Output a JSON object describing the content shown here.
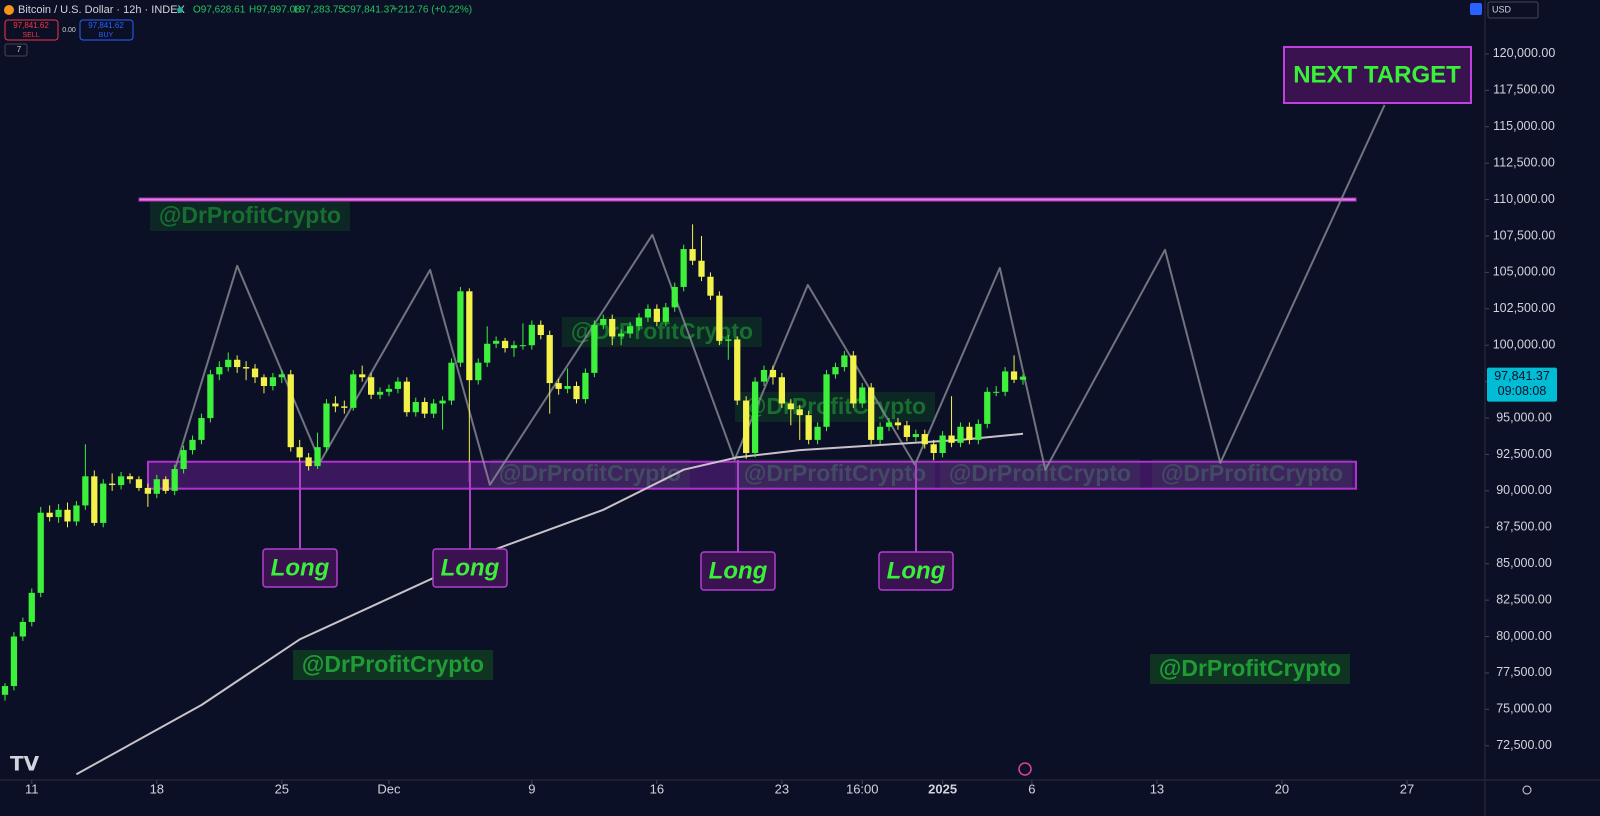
{
  "header": {
    "symbol": "Bitcoin / U.S. Dollar · 12h · INDEX",
    "ohlc": [
      "O97,628.61",
      "H97,997.08",
      "L97,283.75",
      "C97,841.37"
    ],
    "change": "+212.76 (+0.22%)",
    "sell_price": "97,841.62",
    "sell": "SELL",
    "spread": "0.00",
    "buy_price": "97,841.62",
    "buy": "BUY",
    "indicators": "7",
    "currency": "USD"
  },
  "chart_data": {
    "type": "candlestick",
    "up_color": "#3cf03c",
    "down_color": "#f2f24a",
    "ohlc": [
      [
        76000,
        76800,
        75600,
        76600
      ],
      [
        76600,
        80300,
        76300,
        80000
      ],
      [
        80000,
        81300,
        79700,
        81000
      ],
      [
        81000,
        83300,
        80700,
        83000
      ],
      [
        83000,
        88900,
        82700,
        88500
      ],
      [
        88500,
        89000,
        87900,
        88200
      ],
      [
        88200,
        89100,
        87800,
        88700
      ],
      [
        88700,
        89200,
        87500,
        87900
      ],
      [
        87900,
        89300,
        87600,
        89000
      ],
      [
        89000,
        93200,
        88700,
        91000
      ],
      [
        91000,
        91400,
        87600,
        87800
      ],
      [
        87800,
        90800,
        87500,
        90500
      ],
      [
        90500,
        91200,
        90000,
        90400
      ],
      [
        90400,
        91300,
        90100,
        91000
      ],
      [
        91000,
        91200,
        90500,
        90800
      ],
      [
        90800,
        91000,
        90000,
        90200
      ],
      [
        90200,
        90500,
        88900,
        89800
      ],
      [
        89800,
        91100,
        89500,
        90800
      ],
      [
        90800,
        91000,
        89800,
        90000
      ],
      [
        90000,
        91800,
        89700,
        91500
      ],
      [
        91500,
        93100,
        91200,
        92800
      ],
      [
        92800,
        93800,
        92500,
        93500
      ],
      [
        93500,
        95300,
        93200,
        95000
      ],
      [
        95000,
        98300,
        94700,
        98000
      ],
      [
        98000,
        98900,
        97600,
        98500
      ],
      [
        98500,
        99500,
        98200,
        99000
      ],
      [
        99000,
        99300,
        98100,
        98500
      ],
      [
        98500,
        98900,
        97600,
        98400
      ],
      [
        98400,
        98700,
        97400,
        97800
      ],
      [
        97800,
        98000,
        96700,
        97200
      ],
      [
        97200,
        98100,
        96900,
        97800
      ],
      [
        97800,
        98300,
        97400,
        98000
      ],
      [
        98000,
        98300,
        92700,
        93000
      ],
      [
        93000,
        93500,
        92000,
        92300
      ],
      [
        92300,
        92600,
        91400,
        91700
      ],
      [
        91700,
        94000,
        91500,
        93000
      ],
      [
        93000,
        96300,
        92700,
        96000
      ],
      [
        96000,
        96500,
        95400,
        95800
      ],
      [
        95800,
        96200,
        95300,
        95700
      ],
      [
        95700,
        98300,
        95500,
        98000
      ],
      [
        98000,
        98600,
        97500,
        97800
      ],
      [
        97800,
        98100,
        96300,
        96600
      ],
      [
        96600,
        97100,
        96300,
        96800
      ],
      [
        96800,
        97300,
        96500,
        97000
      ],
      [
        97000,
        97800,
        96700,
        97500
      ],
      [
        97500,
        97800,
        95100,
        95400
      ],
      [
        95400,
        96400,
        95100,
        96100
      ],
      [
        96100,
        96400,
        95000,
        95300
      ],
      [
        95300,
        96300,
        95000,
        96000
      ],
      [
        96000,
        96500,
        94200,
        96200
      ],
      [
        96200,
        99100,
        95900,
        98800
      ],
      [
        98800,
        104000,
        98500,
        103700
      ],
      [
        103700,
        103900,
        90600,
        97600
      ],
      [
        97600,
        99100,
        97300,
        98800
      ],
      [
        98800,
        101300,
        98500,
        100100
      ],
      [
        100100,
        100600,
        99800,
        100300
      ],
      [
        100300,
        100500,
        99500,
        99800
      ],
      [
        99800,
        100300,
        99200,
        100000
      ],
      [
        100000,
        101500,
        99700,
        100000
      ],
      [
        100000,
        101700,
        99700,
        101400
      ],
      [
        101400,
        101700,
        100400,
        100700
      ],
      [
        100700,
        101000,
        95300,
        97400
      ],
      [
        97400,
        97700,
        96600,
        97000
      ],
      [
        97000,
        98400,
        96700,
        97200
      ],
      [
        97200,
        97500,
        96000,
        96300
      ],
      [
        96300,
        98400,
        96000,
        98100
      ],
      [
        98100,
        101700,
        97800,
        101400
      ],
      [
        101400,
        102100,
        101100,
        101800
      ],
      [
        101800,
        102100,
        100000,
        100600
      ],
      [
        100600,
        101100,
        100000,
        100800
      ],
      [
        100800,
        101600,
        100500,
        101300
      ],
      [
        101300,
        102200,
        101000,
        101900
      ],
      [
        101900,
        102800,
        101600,
        102500
      ],
      [
        102500,
        102800,
        101300,
        101600
      ],
      [
        101600,
        102900,
        101300,
        102600
      ],
      [
        102600,
        104300,
        102300,
        104000
      ],
      [
        104000,
        106900,
        103700,
        106600
      ],
      [
        106600,
        108300,
        105500,
        105800
      ],
      [
        105800,
        107500,
        104400,
        104700
      ],
      [
        104700,
        105000,
        103100,
        103400
      ],
      [
        103400,
        103700,
        100000,
        100300
      ],
      [
        100300,
        100700,
        99000,
        100400
      ],
      [
        100400,
        100600,
        95900,
        96200
      ],
      [
        96200,
        96500,
        92200,
        92600
      ],
      [
        92600,
        97800,
        92300,
        97500
      ],
      [
        97500,
        98600,
        97200,
        98300
      ],
      [
        98300,
        98600,
        97300,
        97800
      ],
      [
        97800,
        98100,
        95700,
        96000
      ],
      [
        96000,
        96300,
        94500,
        95600
      ],
      [
        95600,
        95900,
        93500,
        95200
      ],
      [
        95200,
        95500,
        93200,
        93500
      ],
      [
        93500,
        94700,
        93200,
        94400
      ],
      [
        94400,
        98300,
        94100,
        98000
      ],
      [
        98000,
        98800,
        97700,
        98500
      ],
      [
        98500,
        99600,
        98200,
        99300
      ],
      [
        99300,
        99600,
        95700,
        96000
      ],
      [
        96000,
        97400,
        95700,
        97100
      ],
      [
        97100,
        97400,
        93200,
        93500
      ],
      [
        93500,
        94700,
        93200,
        94400
      ],
      [
        94400,
        95000,
        94100,
        94700
      ],
      [
        94700,
        95000,
        94200,
        94500
      ],
      [
        94500,
        94800,
        93400,
        93700
      ],
      [
        93700,
        94200,
        93400,
        93900
      ],
      [
        93900,
        94200,
        92900,
        93200
      ],
      [
        93200,
        93500,
        92100,
        92600
      ],
      [
        92600,
        94100,
        92300,
        93800
      ],
      [
        93800,
        96500,
        93000,
        93300
      ],
      [
        93300,
        94700,
        93000,
        94400
      ],
      [
        94400,
        94700,
        93200,
        93500
      ],
      [
        93500,
        94900,
        93200,
        94600
      ],
      [
        94600,
        97100,
        94300,
        96800
      ],
      [
        96800,
        97200,
        96500,
        96800
      ],
      [
        96800,
        98500,
        96500,
        98200
      ],
      [
        98200,
        99300,
        97400,
        97628.61
      ],
      [
        97628.61,
        97997.08,
        97283.75,
        97841.37
      ]
    ],
    "xlim": [
      -0.56,
      165.74
    ],
    "xticks": [
      {
        "value": 3,
        "label": "11"
      },
      {
        "value": 17,
        "label": "18"
      },
      {
        "value": 31,
        "label": "25"
      },
      {
        "value": 43,
        "label": "Dec"
      },
      {
        "value": 59,
        "label": "9"
      },
      {
        "value": 73,
        "label": "16"
      },
      {
        "value": 87,
        "label": "23"
      },
      {
        "value": 96,
        "label": "16:00"
      },
      {
        "value": 105,
        "label": "2025"
      },
      {
        "value": 115,
        "label": "6"
      },
      {
        "value": 129,
        "label": "13"
      },
      {
        "value": 143,
        "label": "20"
      },
      {
        "value": 157,
        "label": "27"
      }
    ],
    "ylim": [
      70150,
      123700
    ],
    "yticks": [
      {
        "value": 120000,
        "label": "120,000.00"
      },
      {
        "value": 117500,
        "label": "117,500.00"
      },
      {
        "value": 115000,
        "label": "115,000.00"
      },
      {
        "value": 112500,
        "label": "112,500.00"
      },
      {
        "value": 110000,
        "label": "110,000.00"
      },
      {
        "value": 107500,
        "label": "107,500.00"
      },
      {
        "value": 105000,
        "label": "105,000.00"
      },
      {
        "value": 102500,
        "label": "102,500.00"
      },
      {
        "value": 100000,
        "label": "100,000.00"
      },
      {
        "value": 97500,
        "label": "97,500.00"
      },
      {
        "value": 95000,
        "label": "95,000.00"
      },
      {
        "value": 92500,
        "label": "92,500.00"
      },
      {
        "value": 90000,
        "label": "90,000.00"
      },
      {
        "value": 87500,
        "label": "87,500.00"
      },
      {
        "value": 85000,
        "label": "85,000.00"
      },
      {
        "value": 82500,
        "label": "82,500.00"
      },
      {
        "value": 80000,
        "label": "80,000.00"
      },
      {
        "value": 77500,
        "label": "77,500.00"
      },
      {
        "value": 75000,
        "label": "75,000.00"
      },
      {
        "value": 72500,
        "label": "72,500.00"
      }
    ],
    "last_price": {
      "value": 97841.37,
      "label": "97,841.37"
    },
    "countdown": "09:08:08",
    "moving_average": {
      "color": "#c9c2c9",
      "x": [
        8,
        22,
        33,
        44,
        55,
        67,
        76,
        82,
        89,
        98,
        107,
        114
      ],
      "values": [
        70540,
        75300,
        79800,
        82900,
        86000,
        88700,
        91450,
        92300,
        92800,
        93150,
        93500,
        93920
      ]
    },
    "projection": {
      "color": "#8a8d96",
      "x": [
        19,
        26,
        35.3,
        47.6,
        54.3,
        72.5,
        81.7,
        89.9,
        101.9,
        111.4,
        116.5,
        129.9,
        136.1,
        154.5
      ],
      "values": [
        91440,
        105450,
        91990,
        105170,
        90420,
        107580,
        92130,
        104140,
        91790,
        105310,
        91440,
        106550,
        91920,
        116500
      ]
    },
    "resistance": 110000,
    "support_zone": [
      90150,
      92000
    ],
    "annotation": "Long",
    "target": "NEXT TARGET",
    "watermark": "@DrProfitCrypto"
  }
}
